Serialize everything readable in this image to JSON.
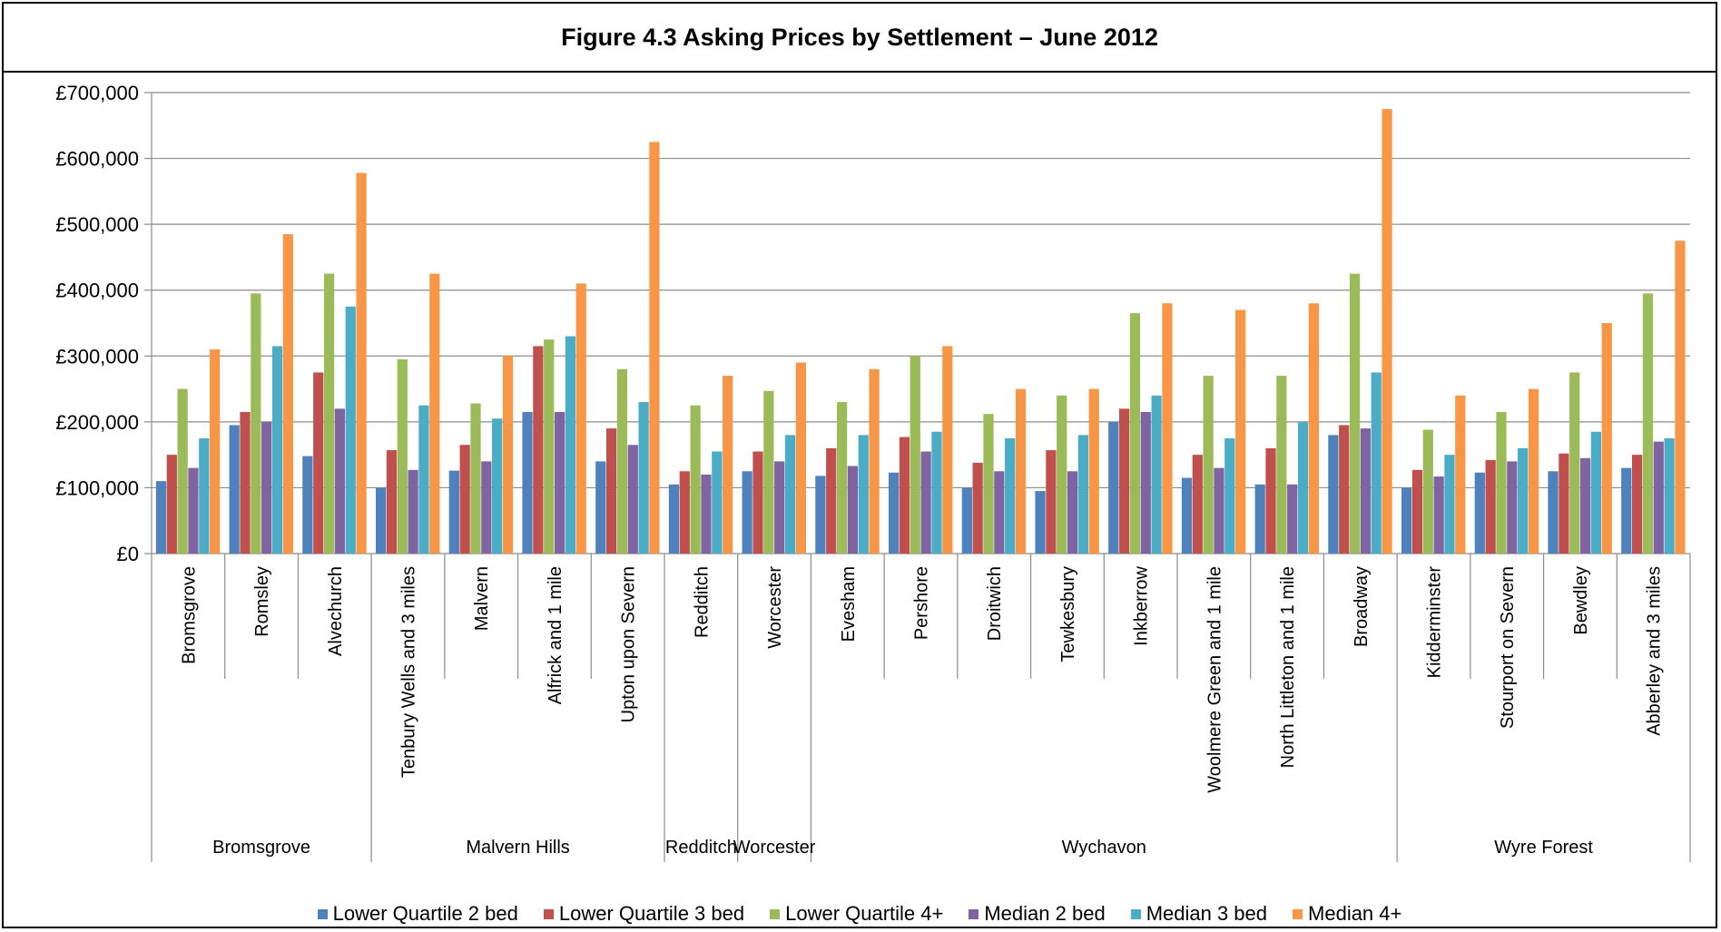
{
  "title": "Figure 4.3  Asking Prices by Settlement – June 2012",
  "chart_data": {
    "type": "bar",
    "title": "Figure 4.3  Asking Prices by Settlement – June 2012",
    "ylim": [
      0,
      700000
    ],
    "yticks": [
      "£0",
      "£100,000",
      "£200,000",
      "£300,000",
      "£400,000",
      "£500,000",
      "£600,000",
      "£700,000"
    ],
    "ytick_values": [
      0,
      100000,
      200000,
      300000,
      400000,
      500000,
      600000,
      700000
    ],
    "grid": true,
    "legend_position": "bottom",
    "categories": [
      "Bromsgrove",
      "Romsley",
      "Alvechurch",
      "Tenbury Wells and 3 miles",
      "Malvern",
      "Alfrick and 1 mile",
      "Upton upon Severn",
      "Redditch",
      "Worcester",
      "Evesham",
      "Pershore",
      "Droitwich",
      "Tewkesbury",
      "Inkberrow",
      "Woolmere Green and 1 mile",
      "North Littleton and 1 mile",
      "Broadway",
      "Kidderminster",
      "Stourport on Severn",
      "Bewdley",
      "Abberley and 3 miles"
    ],
    "groups": [
      {
        "name": "Bromsgrove",
        "count": 3
      },
      {
        "name": "Malvern Hills",
        "count": 4
      },
      {
        "name": "Redditch",
        "count": 1
      },
      {
        "name": "Worcester",
        "count": 1
      },
      {
        "name": "Wychavon",
        "count": 8
      },
      {
        "name": "Wyre Forest",
        "count": 4
      }
    ],
    "series": [
      {
        "name": "Lower Quartile 2 bed",
        "color": "#4F81BD",
        "values": [
          110000,
          195000,
          148000,
          100000,
          126000,
          215000,
          140000,
          105000,
          125000,
          118000,
          123000,
          100000,
          95000,
          200000,
          115000,
          105000,
          180000,
          100000,
          123000,
          125000,
          130000
        ]
      },
      {
        "name": "Lower Quartile 3 bed",
        "color": "#C0504D",
        "values": [
          150000,
          215000,
          275000,
          157000,
          165000,
          315000,
          190000,
          125000,
          155000,
          160000,
          177000,
          138000,
          157000,
          220000,
          150000,
          160000,
          195000,
          127000,
          142000,
          152000,
          150000
        ]
      },
      {
        "name": "Lower Quartile 4+",
        "color": "#9BBB59",
        "values": [
          250000,
          395000,
          425000,
          295000,
          228000,
          325000,
          280000,
          225000,
          247000,
          230000,
          300000,
          212000,
          240000,
          365000,
          270000,
          270000,
          425000,
          188000,
          215000,
          275000,
          395000
        ]
      },
      {
        "name": "Median 2 bed",
        "color": "#8064A2",
        "values": [
          130000,
          200000,
          220000,
          127000,
          140000,
          215000,
          165000,
          120000,
          140000,
          133000,
          155000,
          125000,
          125000,
          215000,
          130000,
          105000,
          190000,
          117000,
          140000,
          145000,
          170000
        ]
      },
      {
        "name": "Median 3 bed",
        "color": "#4BACC6",
        "values": [
          175000,
          315000,
          375000,
          225000,
          205000,
          330000,
          230000,
          155000,
          180000,
          180000,
          185000,
          175000,
          180000,
          240000,
          175000,
          200000,
          275000,
          150000,
          160000,
          185000,
          175000
        ]
      },
      {
        "name": "Median 4+",
        "color": "#F79646",
        "values": [
          310000,
          485000,
          578000,
          425000,
          300000,
          410000,
          625000,
          270000,
          290000,
          280000,
          315000,
          250000,
          250000,
          380000,
          370000,
          380000,
          675000,
          240000,
          250000,
          350000,
          475000
        ]
      }
    ]
  }
}
